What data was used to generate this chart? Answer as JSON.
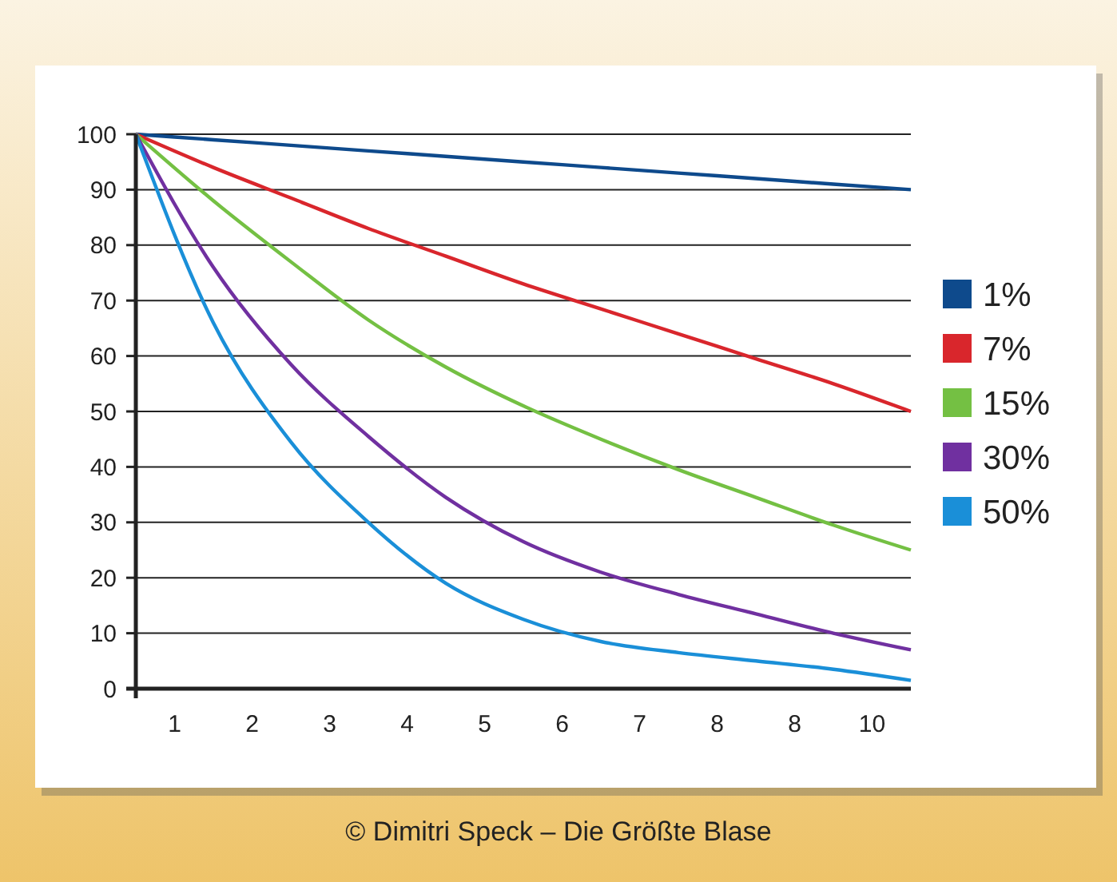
{
  "chart_data": {
    "type": "line",
    "x": [
      0,
      1,
      2,
      3,
      4,
      5,
      6,
      7,
      8,
      9,
      10
    ],
    "series": [
      {
        "name": "1%",
        "color": "#0e4a8c",
        "values": [
          100,
          99,
          98,
          97,
          96,
          95,
          94,
          93,
          92,
          91,
          90
        ]
      },
      {
        "name": "7%",
        "color": "#d9262c",
        "values": [
          100,
          94,
          88.5,
          83,
          78,
          73,
          68.5,
          64,
          59.5,
          55,
          50
        ]
      },
      {
        "name": "15%",
        "color": "#74c043",
        "values": [
          100,
          88,
          77,
          66.5,
          58,
          51,
          45,
          39.5,
          34.5,
          29.5,
          25
        ]
      },
      {
        "name": "30%",
        "color": "#7030a0",
        "values": [
          100,
          76,
          58.5,
          45.5,
          34.5,
          26.5,
          21,
          17,
          13.5,
          10,
          7
        ]
      },
      {
        "name": "50%",
        "color": "#1a8fd8",
        "values": [
          100,
          66,
          44.5,
          30,
          19,
          12.5,
          8.5,
          6.5,
          5,
          3.5,
          1.5
        ]
      }
    ],
    "xlim": [
      0,
      10
    ],
    "xticks": [
      {
        "value": 0.5,
        "label": "1"
      },
      {
        "value": 1.5,
        "label": "2"
      },
      {
        "value": 2.5,
        "label": "3"
      },
      {
        "value": 3.5,
        "label": "4"
      },
      {
        "value": 4.5,
        "label": "5"
      },
      {
        "value": 5.5,
        "label": "6"
      },
      {
        "value": 6.5,
        "label": "7"
      },
      {
        "value": 7.5,
        "label": "8"
      },
      {
        "value": 8.5,
        "label": "8"
      },
      {
        "value": 9.5,
        "label": "10"
      }
    ],
    "ylim": [
      0,
      100
    ],
    "yticks": [
      0,
      10,
      20,
      30,
      40,
      50,
      60,
      70,
      80,
      90,
      100
    ],
    "grid": "y",
    "legend": "right",
    "marker": "none",
    "line_style": "solid",
    "annotations": [
      "© Dimitri Speck – Die Größte Blase"
    ]
  }
}
